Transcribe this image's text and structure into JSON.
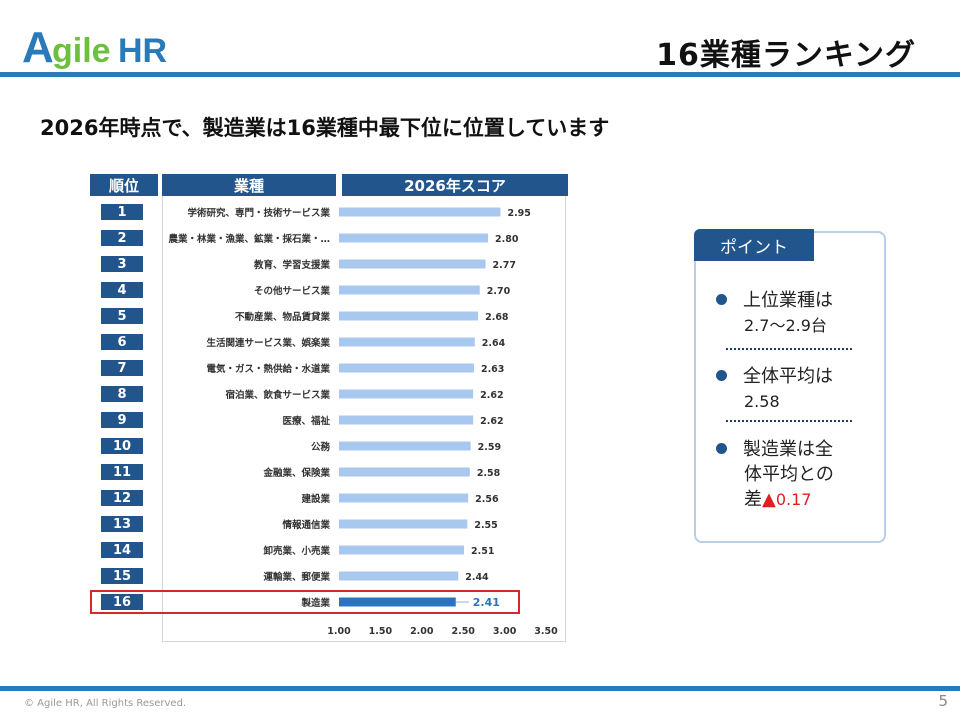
{
  "logo": {
    "text_a": "A",
    "text_rest": "gile",
    "text_hr": "HR",
    "color_primary": "#2a7ab8",
    "color_accent": "#6cbf3f"
  },
  "slide": {
    "title": "16業種ランキング",
    "subtitle": "2026年時点で、製造業は16業種中最下位に位置しています",
    "copyright": "© Agile HR, All Rights Reserved.",
    "page_number": "5"
  },
  "table": {
    "col_rank": "順位",
    "col_industry": "業種",
    "col_score": "2026年スコア"
  },
  "chart_data": {
    "type": "bar",
    "orientation": "horizontal",
    "ranks": [
      "1",
      "2",
      "3",
      "4",
      "5",
      "6",
      "7",
      "8",
      "9",
      "10",
      "11",
      "12",
      "13",
      "14",
      "15",
      "16"
    ],
    "categories": [
      "学術研究、専門・技術サービス業",
      "農業・林業・漁業、鉱業・採石業・…",
      "教育、学習支援業",
      "その他サービス業",
      "不動産業、物品賃貸業",
      "生活関連サービス業、娯楽業",
      "電気・ガス・熱供給・水道業",
      "宿泊業、飲食サービス業",
      "医療、福祉",
      "公務",
      "金融業、保険業",
      "建設業",
      "情報通信業",
      "卸売業、小売業",
      "運輸業、郵便業",
      "製造業"
    ],
    "values": [
      2.95,
      2.8,
      2.77,
      2.7,
      2.68,
      2.64,
      2.63,
      2.62,
      2.62,
      2.59,
      2.58,
      2.56,
      2.55,
      2.51,
      2.44,
      2.41
    ],
    "value_labels": [
      "2.95",
      "2.80",
      "2.77",
      "2.70",
      "2.68",
      "2.64",
      "2.63",
      "2.62",
      "2.62",
      "2.59",
      "2.58",
      "2.56",
      "2.55",
      "2.51",
      "2.44",
      "2.41"
    ],
    "xlim": [
      1.0,
      3.5
    ],
    "xticks": [
      "1.00",
      "1.50",
      "2.00",
      "2.50",
      "3.00",
      "3.50"
    ],
    "highlight_index": 15,
    "bar_color": "#a9c8f0",
    "highlight_color": "#2a74bf",
    "highlight_label_color": "#2a74bf",
    "grid": false
  },
  "point": {
    "tab_label": "ポイント",
    "items": [
      {
        "line1": "上位業種は",
        "line2": "2.7〜2.9台"
      },
      {
        "line1": "全体平均は",
        "line2": "2.58"
      },
      {
        "line1": "製造業は全",
        "line2": "体平均との",
        "line3_prefix": "差",
        "line3_mark": "▲",
        "line3_value": "0.17"
      }
    ]
  }
}
